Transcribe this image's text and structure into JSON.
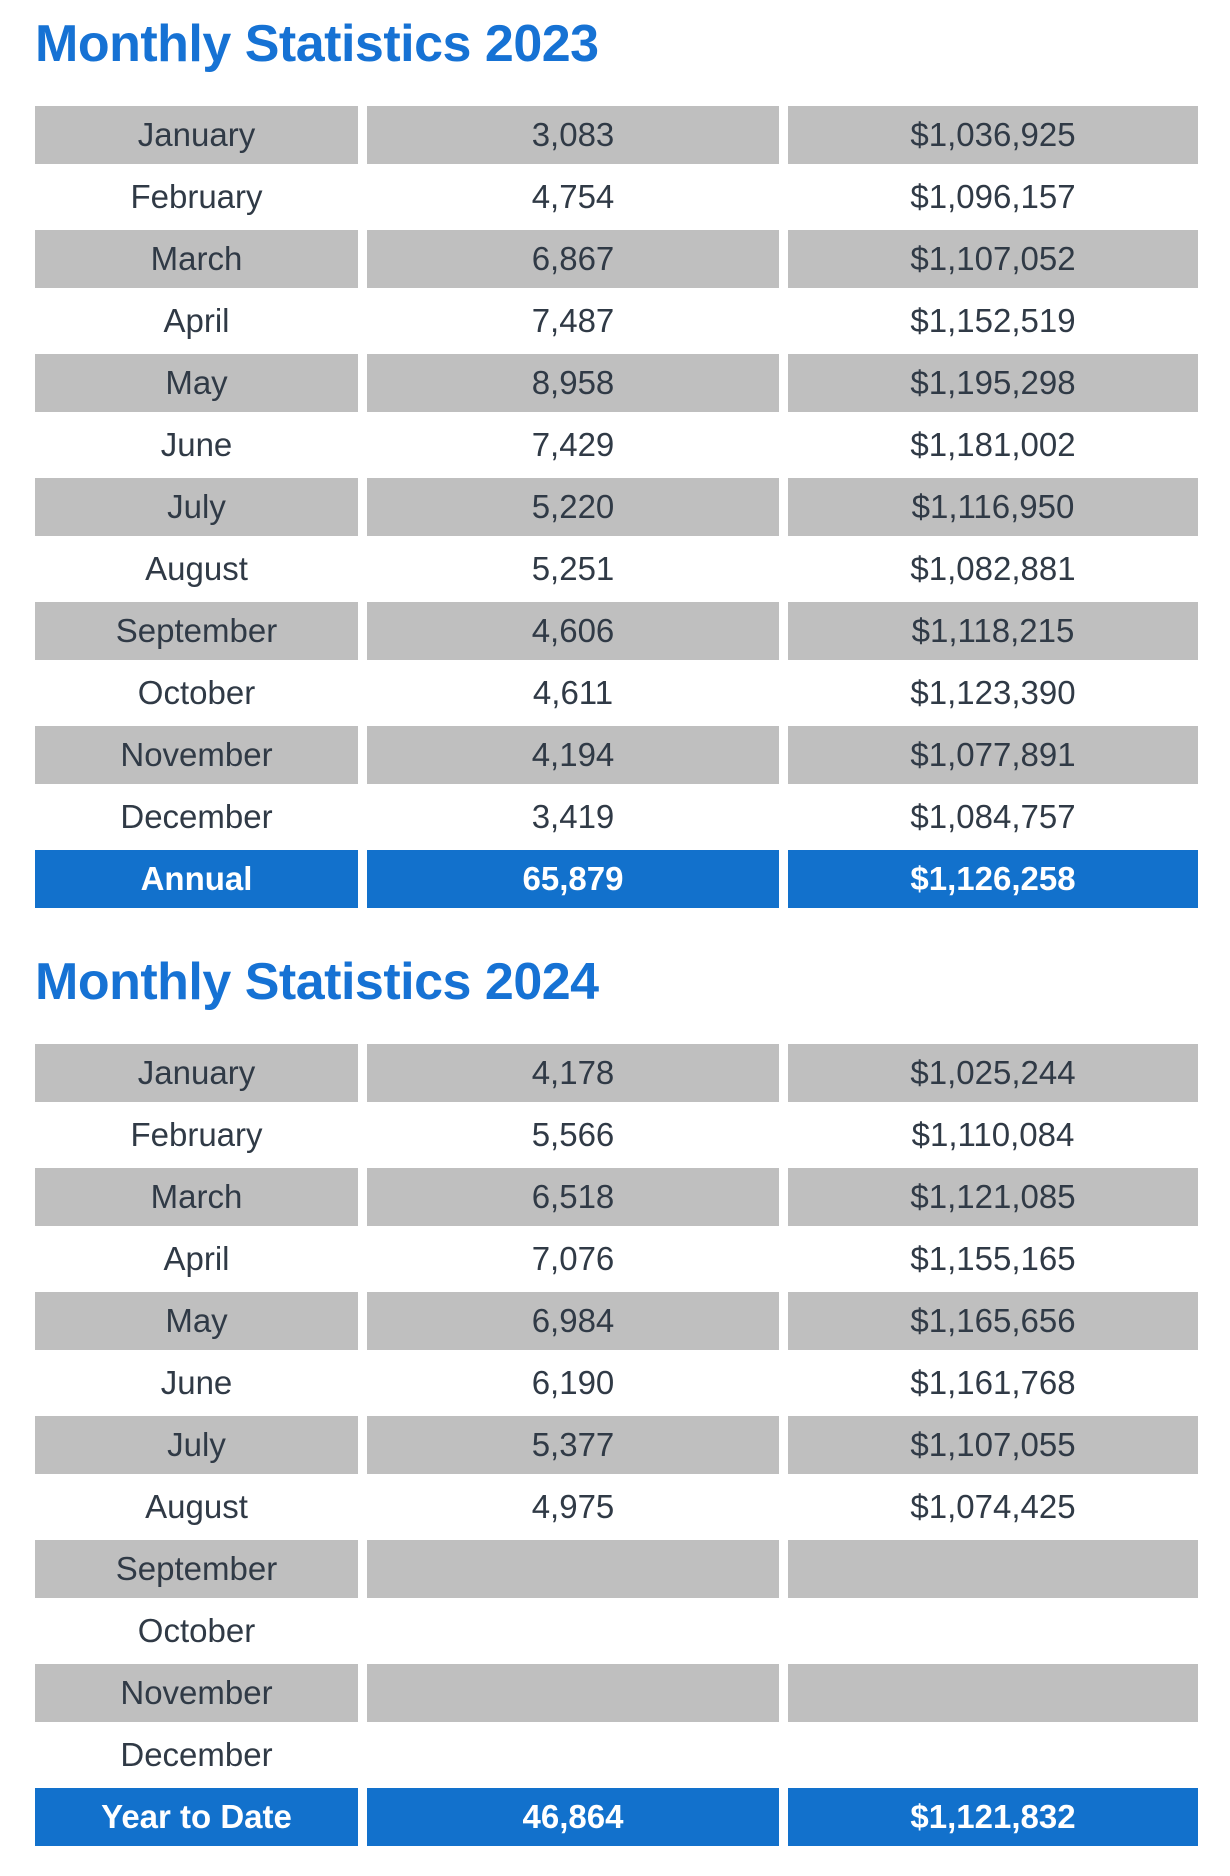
{
  "page": {
    "colors": {
      "accent_blue": "#1672D4",
      "summary_blue": "#1271CC",
      "row_gray": "#BFBFBF",
      "text_dark": "#303A46",
      "summary_text": "#FFFFFF",
      "background": "#FFFFFF"
    }
  },
  "tables": [
    {
      "title": "Monthly Statistics 2023",
      "rows": [
        {
          "label": "January",
          "count": "3,083",
          "amount": "$1,036,925"
        },
        {
          "label": "February",
          "count": "4,754",
          "amount": "$1,096,157"
        },
        {
          "label": "March",
          "count": "6,867",
          "amount": "$1,107,052"
        },
        {
          "label": "April",
          "count": "7,487",
          "amount": "$1,152,519"
        },
        {
          "label": "May",
          "count": "8,958",
          "amount": "$1,195,298"
        },
        {
          "label": "June",
          "count": "7,429",
          "amount": "$1,181,002"
        },
        {
          "label": "July",
          "count": "5,220",
          "amount": "$1,116,950"
        },
        {
          "label": "August",
          "count": "5,251",
          "amount": "$1,082,881"
        },
        {
          "label": "September",
          "count": "4,606",
          "amount": "$1,118,215"
        },
        {
          "label": "October",
          "count": "4,611",
          "amount": "$1,123,390"
        },
        {
          "label": "November",
          "count": "4,194",
          "amount": "$1,077,891"
        },
        {
          "label": "December",
          "count": "3,419",
          "amount": "$1,084,757"
        }
      ],
      "summary": {
        "label": "Annual",
        "count": "65,879",
        "amount": "$1,126,258"
      }
    },
    {
      "title": "Monthly Statistics 2024",
      "rows": [
        {
          "label": "January",
          "count": "4,178",
          "amount": "$1,025,244"
        },
        {
          "label": "February",
          "count": "5,566",
          "amount": "$1,110,084"
        },
        {
          "label": "March",
          "count": "6,518",
          "amount": "$1,121,085"
        },
        {
          "label": "April",
          "count": "7,076",
          "amount": "$1,155,165"
        },
        {
          "label": "May",
          "count": "6,984",
          "amount": "$1,165,656"
        },
        {
          "label": "June",
          "count": "6,190",
          "amount": "$1,161,768"
        },
        {
          "label": "July",
          "count": "5,377",
          "amount": "$1,107,055"
        },
        {
          "label": "August",
          "count": "4,975",
          "amount": "$1,074,425"
        },
        {
          "label": "September",
          "count": "",
          "amount": ""
        },
        {
          "label": "October",
          "count": "",
          "amount": ""
        },
        {
          "label": "November",
          "count": "",
          "amount": ""
        },
        {
          "label": "December",
          "count": "",
          "amount": ""
        }
      ],
      "summary": {
        "label": "Year to Date",
        "count": "46,864",
        "amount": "$1,121,832"
      }
    }
  ]
}
